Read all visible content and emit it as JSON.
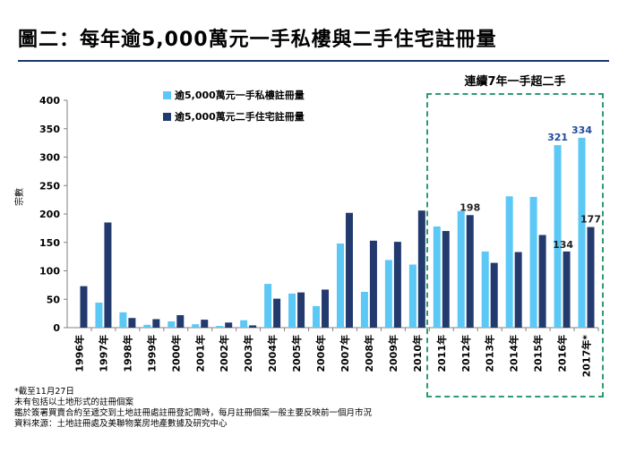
{
  "title": "圖二：每年逾5,000萬元一手私樓與二手住宅註冊量",
  "highlight_label": "連續7年一手超二手",
  "notes": [
    "*截至11月27日",
    "未有包括以土地形式的註冊個案",
    "鑑於簽署買賣合約至遞交到土地註冊處註冊登記需時，每月註冊個案一般主要反映前一個月市況",
    "資料來源：土地註冊處及美聯物業房地產數據及研究中心"
  ],
  "colors": {
    "primary": "#5bc8f5",
    "secondary": "#233a6e",
    "value_label_primary": "#1f4aa0",
    "highlight_border": "#2e9b6e"
  },
  "chart_data": {
    "type": "bar",
    "ylabel": "宗數",
    "xlabel": "",
    "ylim": [
      0,
      400
    ],
    "yticks": [
      0,
      50,
      100,
      150,
      200,
      250,
      300,
      350,
      400
    ],
    "categories": [
      "1996年",
      "1997年",
      "1998年",
      "1999年",
      "2000年",
      "2001年",
      "2002年",
      "2003年",
      "2004年",
      "2005年",
      "2006年",
      "2007年",
      "2008年",
      "2009年",
      "2010年",
      "2011年",
      "2012年",
      "2013年",
      "2014年",
      "2015年",
      "2016年",
      "2017年*"
    ],
    "series": [
      {
        "name": "逾5,000萬元一手私樓註冊量",
        "values": [
          0,
          44,
          27,
          5,
          11,
          6,
          3,
          13,
          77,
          60,
          38,
          148,
          63,
          119,
          111,
          178,
          205,
          134,
          231,
          230,
          321,
          334
        ]
      },
      {
        "name": "逾5,000萬元二手住宅註冊量",
        "values": [
          73,
          185,
          17,
          15,
          22,
          14,
          9,
          4,
          51,
          62,
          67,
          202,
          153,
          151,
          206,
          170,
          198,
          114,
          133,
          163,
          134,
          177
        ]
      }
    ],
    "data_labels": [
      {
        "series": 1,
        "category": "2012年",
        "text": "198"
      },
      {
        "series": 0,
        "category": "2016年",
        "text": "321"
      },
      {
        "series": 1,
        "category": "2016年",
        "text": "134"
      },
      {
        "series": 0,
        "category": "2017年*",
        "text": "334"
      },
      {
        "series": 1,
        "category": "2017年*",
        "text": "177"
      }
    ]
  }
}
